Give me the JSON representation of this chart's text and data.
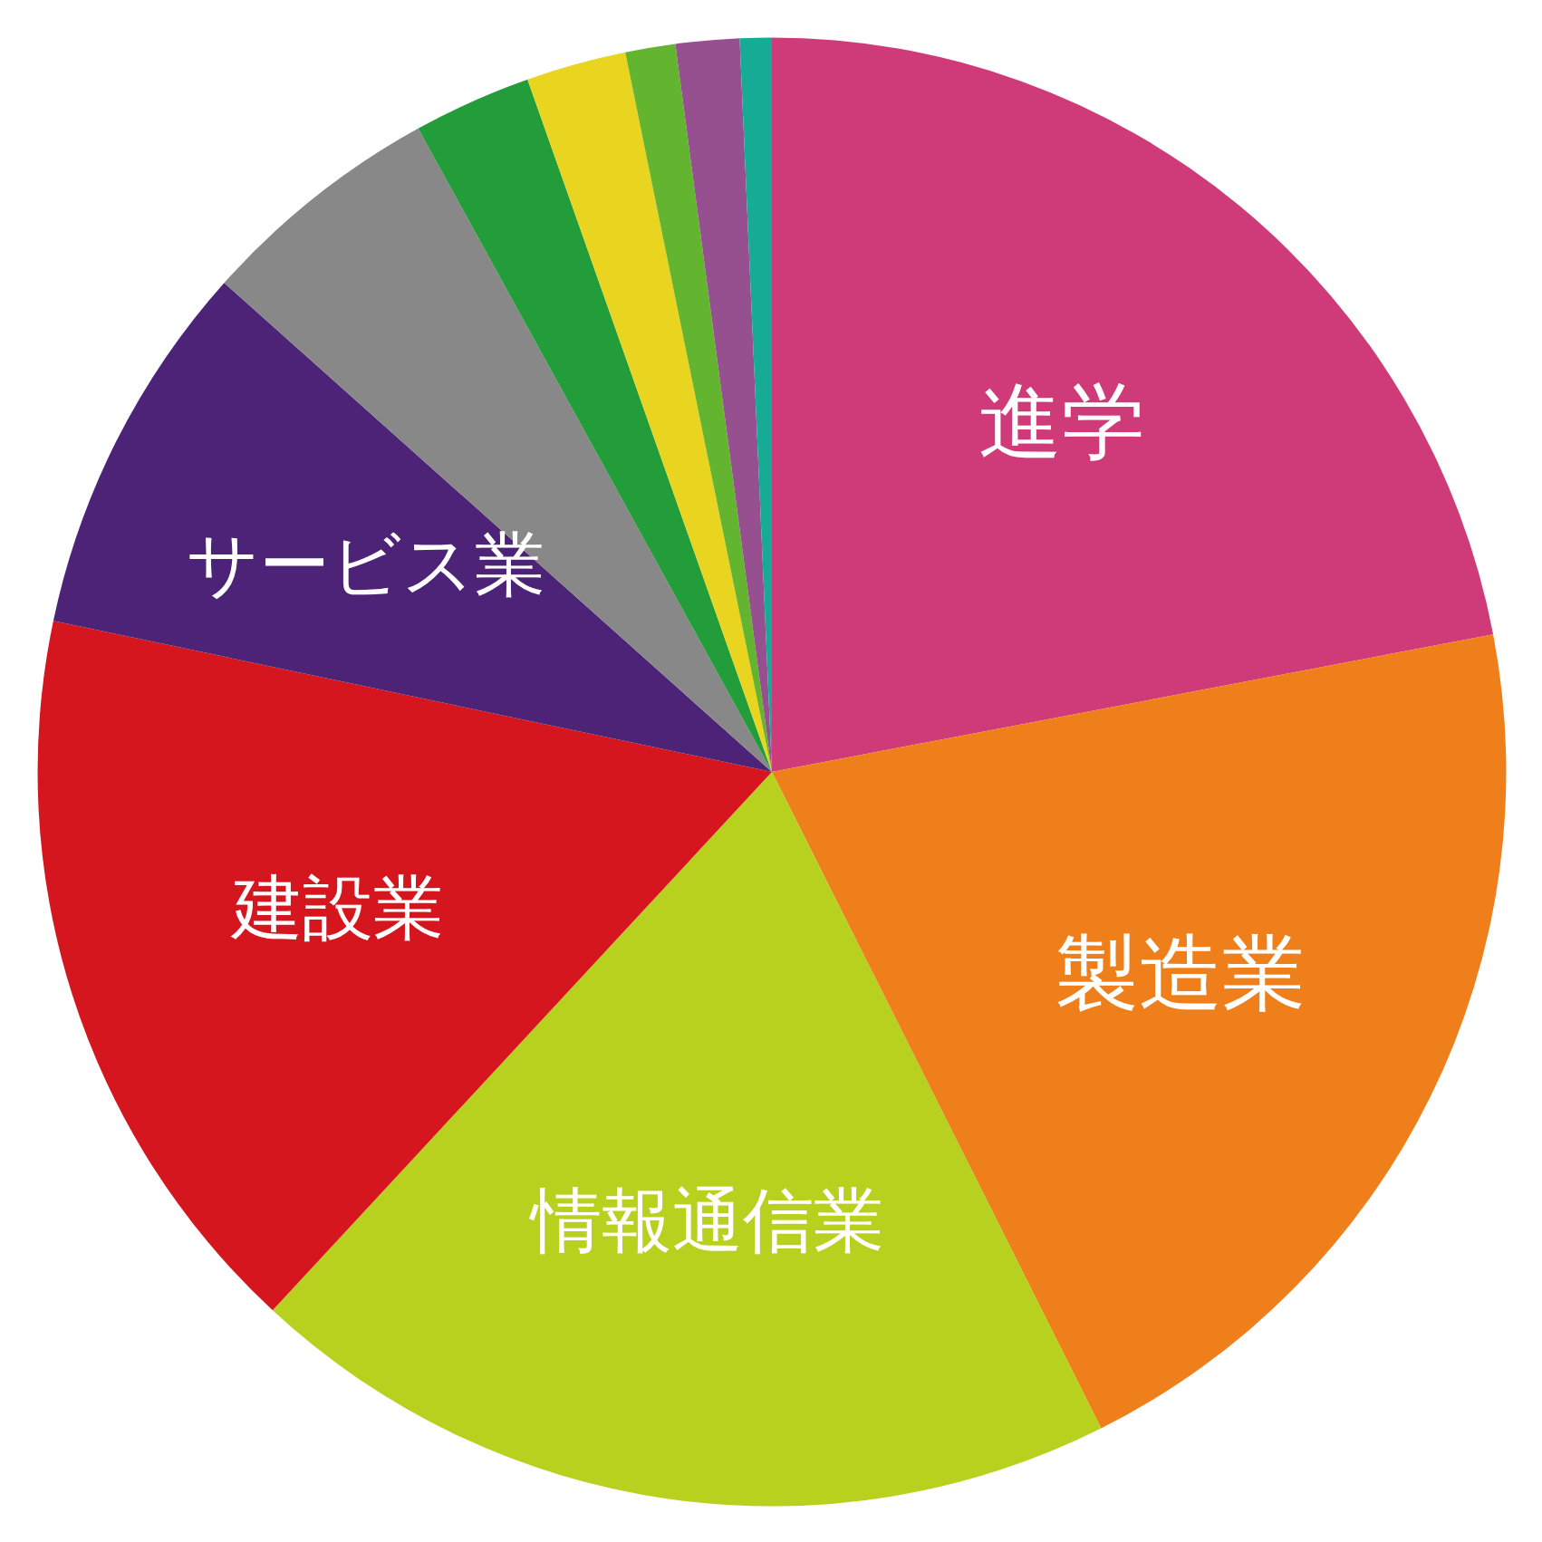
{
  "chart_data": {
    "type": "pie",
    "categories": [
      "進学",
      "製造業",
      "情報通信業",
      "建設業",
      "サービス業",
      null,
      null,
      null,
      null,
      null,
      null
    ],
    "values": [
      22.0,
      20.6,
      19.3,
      16.4,
      8.3,
      5.4,
      2.6,
      2.2,
      1.1,
      1.4,
      0.7
    ],
    "colors": [
      "#cf3a78",
      "#ee7f1a",
      "#b8d11f",
      "#d5161e",
      "#4d2377",
      "#888888",
      "#239c3a",
      "#e9d520",
      "#63b530",
      "#964f8f",
      "#16ab95"
    ]
  }
}
